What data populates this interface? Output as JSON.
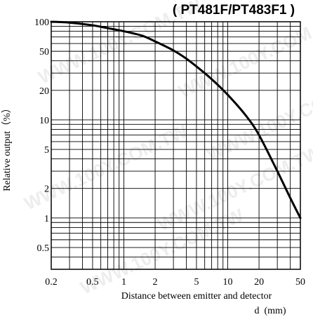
{
  "chart_data": {
    "type": "line",
    "title": "( PT481F/PT483F1 )",
    "xlabel": "Distance between emitter and detector",
    "xunit": "d  (mm)",
    "ylabel": "Relative output（%）",
    "x_scale": "log",
    "y_scale": "log",
    "xlim": [
      0.2,
      50
    ],
    "ylim": [
      0.3,
      100
    ],
    "x_ticks": [
      {
        "value": 0.2,
        "label": "0.2"
      },
      {
        "value": 0.5,
        "label": "0.5"
      },
      {
        "value": 1,
        "label": "1"
      },
      {
        "value": 2,
        "label": "2"
      },
      {
        "value": 5,
        "label": "5"
      },
      {
        "value": 10,
        "label": "10"
      },
      {
        "value": 20,
        "label": "20"
      },
      {
        "value": 50,
        "label": "50"
      }
    ],
    "y_ticks": [
      {
        "value": 100,
        "label": "100"
      },
      {
        "value": 50,
        "label": "50"
      },
      {
        "value": 20,
        "label": "20"
      },
      {
        "value": 10,
        "label": "10"
      },
      {
        "value": 5,
        "label": "5"
      },
      {
        "value": 2,
        "label": "2"
      },
      {
        "value": 1,
        "label": "1"
      },
      {
        "value": 0.5,
        "label": "0.5"
      }
    ],
    "grid": true,
    "series": [
      {
        "x": [
          0.2,
          0.3,
          0.5,
          0.7,
          1.0,
          1.5,
          2.0,
          3.0,
          4.0,
          5.0,
          7.0,
          10,
          15,
          20,
          30,
          40,
          50
        ],
        "y": [
          100,
          98,
          92,
          86,
          80,
          72,
          63,
          51,
          42,
          35,
          26,
          18,
          11,
          7,
          3,
          1.6,
          1
        ]
      }
    ],
    "line_color": "#000000"
  },
  "watermark": "WWW.100Y.COM.TW"
}
